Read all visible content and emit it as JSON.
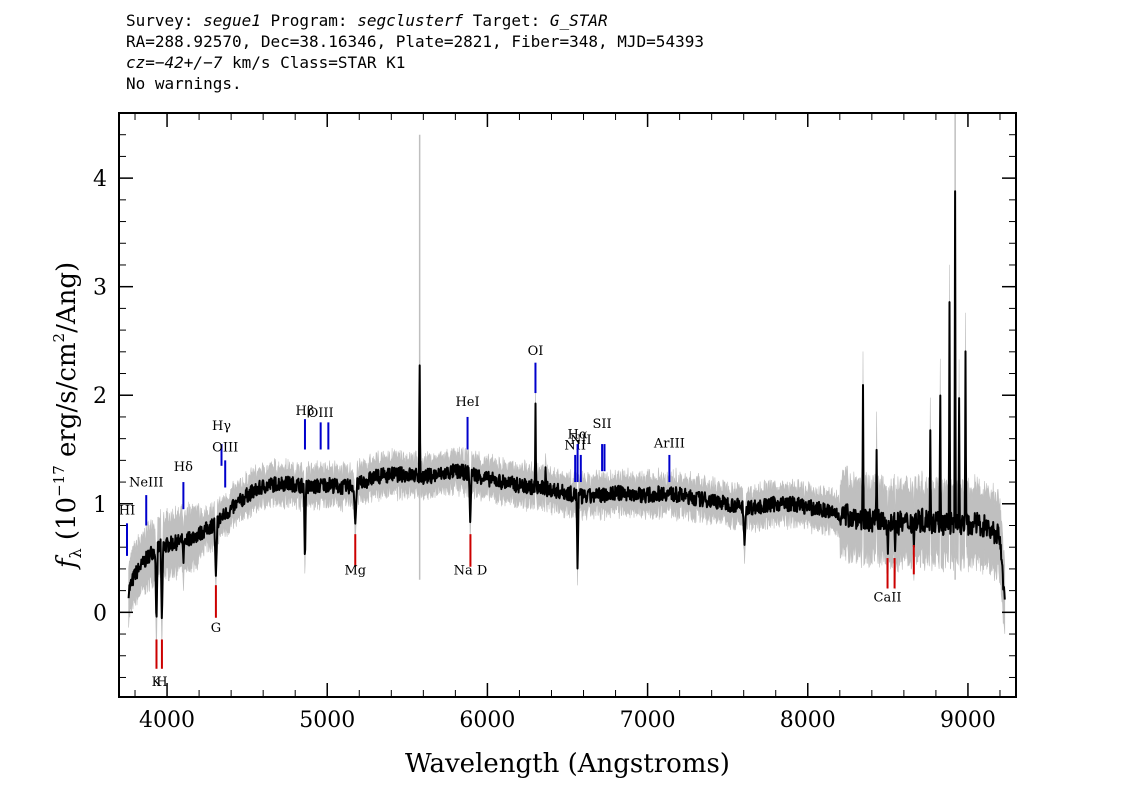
{
  "header": {
    "line1": {
      "survey_label": "Survey: ",
      "survey": "segue1",
      "program_label": " Program: ",
      "program": "segclusterf",
      "target_label": " Target: ",
      "target": "G_STAR"
    },
    "line2": "RA=288.92570, Dec=38.16346, Plate=2821, Fiber=348, MJD=54393",
    "line3": {
      "cz_label": "cz",
      "cz_value": "=−42+/−7",
      "cz_units": " km/s Class=STAR K1"
    },
    "line4": "No warnings."
  },
  "chart_data": {
    "type": "line",
    "title": "",
    "xlabel": "Wavelength (Angstroms)",
    "ylabel": "f_λ (10^-17 erg/s/cm^2/Ang)",
    "ylabel_parts": {
      "f": "f",
      "sub": "λ",
      "pre": " (10",
      "exp1": "−17",
      "mid": " erg/s/cm",
      "exp2": "2",
      "post": "/Ang)"
    },
    "xlim": [
      3700,
      9300
    ],
    "ylim": [
      -0.78,
      4.6
    ],
    "x_ticks": [
      4000,
      5000,
      6000,
      7000,
      8000,
      9000
    ],
    "x_tick_labels": [
      "4000",
      "5000",
      "6000",
      "7000",
      "8000",
      "9000"
    ],
    "y_ticks": [
      0,
      1,
      2,
      3,
      4
    ],
    "y_tick_labels": [
      "0",
      "1",
      "2",
      "3",
      "4"
    ],
    "colors": {
      "spectrum": "#000000",
      "error_band": "#bfbfbf",
      "emission": "#0000cc",
      "absorption": "#cc0000"
    },
    "spectrum_anchors": [
      [
        3760,
        0.2
      ],
      [
        3800,
        0.35
      ],
      [
        3850,
        0.45
      ],
      [
        3900,
        0.55
      ],
      [
        3950,
        0.6
      ],
      [
        4000,
        0.62
      ],
      [
        4100,
        0.66
      ],
      [
        4200,
        0.72
      ],
      [
        4300,
        0.82
      ],
      [
        4400,
        0.95
      ],
      [
        4500,
        1.08
      ],
      [
        4600,
        1.16
      ],
      [
        4700,
        1.19
      ],
      [
        4800,
        1.18
      ],
      [
        4900,
        1.15
      ],
      [
        5000,
        1.18
      ],
      [
        5100,
        1.15
      ],
      [
        5200,
        1.18
      ],
      [
        5300,
        1.25
      ],
      [
        5400,
        1.27
      ],
      [
        5500,
        1.27
      ],
      [
        5600,
        1.25
      ],
      [
        5700,
        1.27
      ],
      [
        5800,
        1.3
      ],
      [
        5900,
        1.28
      ],
      [
        6000,
        1.23
      ],
      [
        6100,
        1.2
      ],
      [
        6200,
        1.17
      ],
      [
        6300,
        1.15
      ],
      [
        6400,
        1.13
      ],
      [
        6500,
        1.1
      ],
      [
        6600,
        1.06
      ],
      [
        6700,
        1.08
      ],
      [
        6800,
        1.1
      ],
      [
        6900,
        1.09
      ],
      [
        7000,
        1.08
      ],
      [
        7100,
        1.1
      ],
      [
        7200,
        1.08
      ],
      [
        7300,
        1.05
      ],
      [
        7400,
        1.03
      ],
      [
        7500,
        1.0
      ],
      [
        7600,
        0.97
      ],
      [
        7700,
        0.97
      ],
      [
        7800,
        1.0
      ],
      [
        7900,
        1.0
      ],
      [
        8000,
        0.97
      ],
      [
        8100,
        0.94
      ],
      [
        8200,
        0.9
      ],
      [
        8300,
        0.88
      ],
      [
        8400,
        0.85
      ],
      [
        8500,
        0.82
      ],
      [
        8600,
        0.82
      ],
      [
        8700,
        0.85
      ],
      [
        8800,
        0.82
      ],
      [
        8900,
        0.82
      ],
      [
        9000,
        0.82
      ],
      [
        9100,
        0.8
      ],
      [
        9200,
        0.7
      ],
      [
        9230,
        0.05
      ]
    ],
    "spectrum_features": [
      {
        "x": 3934,
        "y": -0.15,
        "w": 8
      },
      {
        "x": 3968,
        "y": -0.1,
        "w": 8
      },
      {
        "x": 4102,
        "y": 0.45,
        "w": 6
      },
      {
        "x": 4305,
        "y": 0.32,
        "w": 10
      },
      {
        "x": 4861,
        "y": 0.45,
        "w": 7
      },
      {
        "x": 5175,
        "y": 0.82,
        "w": 12
      },
      {
        "x": 5577,
        "y": 2.4,
        "w": 4
      },
      {
        "x": 5893,
        "y": 0.82,
        "w": 8
      },
      {
        "x": 6300,
        "y": 1.92,
        "w": 4
      },
      {
        "x": 6363,
        "y": 1.38,
        "w": 4
      },
      {
        "x": 6563,
        "y": 0.37,
        "w": 7
      },
      {
        "x": 7605,
        "y": 0.62,
        "w": 10
      },
      {
        "x": 8345,
        "y": 2.1,
        "w": 4
      },
      {
        "x": 8430,
        "y": 1.5,
        "w": 4
      },
      {
        "x": 8500,
        "y": 0.55,
        "w": 5
      },
      {
        "x": 8545,
        "y": 0.55,
        "w": 5
      },
      {
        "x": 8662,
        "y": 0.6,
        "w": 5
      },
      {
        "x": 8765,
        "y": 1.7,
        "w": 4
      },
      {
        "x": 8827,
        "y": 2.15,
        "w": 4
      },
      {
        "x": 8885,
        "y": 2.85,
        "w": 4
      },
      {
        "x": 8920,
        "y": 3.9,
        "w": 4
      },
      {
        "x": 8945,
        "y": 1.95,
        "w": 4
      },
      {
        "x": 8985,
        "y": 2.4,
        "w": 4
      }
    ],
    "emission_lines": [
      {
        "label": "HI",
        "x": 3750,
        "y0": 0.52,
        "y1": 0.82,
        "label_y": 0.9
      },
      {
        "label": "NeIII",
        "x": 3870,
        "y0": 0.8,
        "y1": 1.08,
        "label_y": 1.16
      },
      {
        "label": "Hδ",
        "x": 4102,
        "y0": 0.95,
        "y1": 1.2,
        "label_y": 1.3
      },
      {
        "label": "Hγ",
        "x": 4340,
        "y0": 1.35,
        "y1": 1.55,
        "label_y": 1.68
      },
      {
        "label": "OIII",
        "x": 4363,
        "y0": 1.15,
        "y1": 1.4,
        "label_y": 1.48
      },
      {
        "label": "Hβ",
        "x": 4861,
        "y0": 1.5,
        "y1": 1.78,
        "label_y": 1.82
      },
      {
        "label": "OIII",
        "x": 4959,
        "y0": 1.5,
        "y1": 1.75,
        "label_y": 1.8
      },
      {
        "label": "",
        "x": 5007,
        "y0": 1.5,
        "y1": 1.75,
        "label_y": 0
      },
      {
        "label": "HeI",
        "x": 5876,
        "y0": 1.5,
        "y1": 1.8,
        "label_y": 1.9
      },
      {
        "label": "OI",
        "x": 6300,
        "y0": 2.02,
        "y1": 2.3,
        "label_y": 2.37
      },
      {
        "label": "NII",
        "x": 6548,
        "y0": 1.2,
        "y1": 1.45,
        "label_y": 1.5
      },
      {
        "label": "Hα",
        "x": 6563,
        "y0": 1.2,
        "y1": 1.55,
        "label_y": 1.6
      },
      {
        "label": "NII",
        "x": 6583,
        "y0": 1.2,
        "y1": 1.45,
        "label_y": 1.55
      },
      {
        "label": "SII",
        "x": 6716,
        "y0": 1.3,
        "y1": 1.55,
        "label_y": 1.7
      },
      {
        "label": "",
        "x": 6731,
        "y0": 1.3,
        "y1": 1.55,
        "label_y": 0
      },
      {
        "label": "ArIII",
        "x": 7136,
        "y0": 1.2,
        "y1": 1.45,
        "label_y": 1.52
      }
    ],
    "absorption_lines": [
      {
        "label": "K",
        "x": 3934,
        "y0": -0.52,
        "y1": -0.25,
        "label_y": -0.68
      },
      {
        "label": "H",
        "x": 3968,
        "y0": -0.52,
        "y1": -0.25,
        "label_y": -0.68
      },
      {
        "label": "G",
        "x": 4305,
        "y0": -0.05,
        "y1": 0.25,
        "label_y": -0.18
      },
      {
        "label": "Mg",
        "x": 5175,
        "y0": 0.42,
        "y1": 0.72,
        "label_y": 0.35
      },
      {
        "label": "Na D",
        "x": 5894,
        "y0": 0.42,
        "y1": 0.72,
        "label_y": 0.35
      },
      {
        "label": "CaII",
        "x": 8498,
        "y0": 0.22,
        "y1": 0.5,
        "label_y": 0.1
      },
      {
        "label": "",
        "x": 8542,
        "y0": 0.22,
        "y1": 0.5,
        "label_y": 0
      },
      {
        "label": "",
        "x": 8662,
        "y0": 0.35,
        "y1": 0.62,
        "label_y": 0
      }
    ]
  }
}
